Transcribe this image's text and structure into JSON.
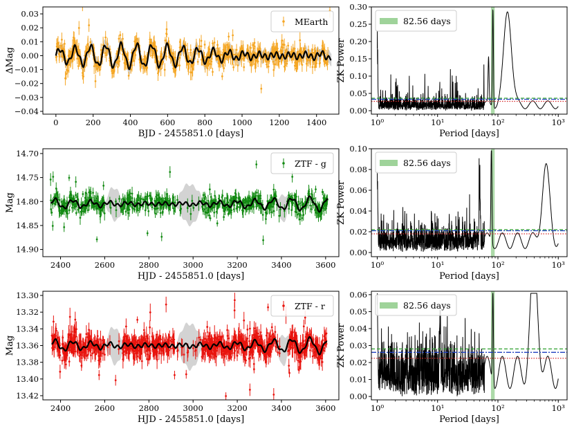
{
  "chart_data": [
    {
      "type": "scatter",
      "panel": "light-curve-mearth",
      "xlabel": "BJD - 2455851.0 [days]",
      "ylabel": "ΔMag",
      "xlim": [
        -70,
        1520
      ],
      "ylim": [
        -0.042,
        0.035
      ],
      "y_inverted": false,
      "xticks": [
        0,
        200,
        400,
        600,
        800,
        1000,
        1200,
        1400
      ],
      "yticks": [
        -0.04,
        -0.03,
        -0.02,
        -0.01,
        0.0,
        0.01,
        0.02,
        0.03
      ],
      "ytick_labels": [
        "−0.04",
        "−0.03",
        "−0.02",
        "−0.01",
        "0.00",
        "0.01",
        "0.02",
        "0.03"
      ],
      "grid": false,
      "legend": {
        "label": "MEarth",
        "position": "top-right"
      },
      "series": [
        {
          "name": "MEarth",
          "role": "data",
          "color": "#f5a623",
          "x_range": [
            0,
            1480
          ],
          "typical_y": 0.0,
          "scatter": 0.006,
          "error": 0.004
        },
        {
          "role": "model",
          "color": "#000000",
          "period": 82.56,
          "amplitude": 0.008
        },
        {
          "role": "uncertainty-band",
          "color": "#d3d3d3"
        }
      ]
    },
    {
      "type": "line",
      "panel": "periodogram-mearth",
      "xlabel": "Period [days]",
      "ylabel": "ZK Power",
      "xscale": "log",
      "xlim": [
        0.8,
        1400
      ],
      "ylim": [
        -0.01,
        0.3
      ],
      "xticks": [
        1,
        10,
        100,
        1000
      ],
      "xtick_labels": [
        "10⁰",
        "10¹",
        "10²",
        "10³"
      ],
      "yticks": [
        0.0,
        0.05,
        0.1,
        0.15,
        0.2,
        0.25,
        0.3
      ],
      "ytick_labels": [
        "0.00",
        "0.05",
        "0.10",
        "0.15",
        "0.20",
        "0.25",
        "0.30"
      ],
      "grid": false,
      "legend": {
        "label": "82.56 days",
        "position": "top-left"
      },
      "highlight_period": 82.56,
      "highlight_color": "#9fd39a",
      "peaks": [
        {
          "x": 82.56,
          "y": 0.283
        },
        {
          "x": 145,
          "y": 0.275
        },
        {
          "x": 1.0,
          "y": 0.17
        },
        {
          "x": 70,
          "y": 0.13
        }
      ],
      "fap_levels": [
        {
          "style": "dashed",
          "color": "#2ca02c",
          "y": 0.036
        },
        {
          "style": "dashdot",
          "color": "#1f3fbf",
          "y": 0.033
        },
        {
          "style": "dotted",
          "color": "#d62728",
          "y": 0.027
        }
      ]
    },
    {
      "type": "scatter",
      "panel": "light-curve-ztf-g",
      "xlabel": "HJD - 2455851.0 [days]",
      "ylabel": "Mag",
      "xlim": [
        2320,
        3660
      ],
      "ylim": [
        14.915,
        14.69
      ],
      "y_inverted": true,
      "xticks": [
        2400,
        2600,
        2800,
        3000,
        3200,
        3400,
        3600
      ],
      "yticks": [
        14.7,
        14.75,
        14.8,
        14.85,
        14.9
      ],
      "ytick_labels": [
        "14.70",
        "14.75",
        "14.80",
        "14.85",
        "14.90"
      ],
      "grid": false,
      "legend": {
        "label": "ZTF - g",
        "position": "top-right"
      },
      "series": [
        {
          "name": "ZTF - g",
          "role": "data",
          "color": "#138a13",
          "x_range": [
            2355,
            3610
          ],
          "typical_y": 14.805,
          "scatter": 0.015,
          "error": 0.01
        },
        {
          "role": "model",
          "color": "#000000",
          "period": 82.56
        },
        {
          "role": "uncertainty-band",
          "color": "#d3d3d3"
        }
      ]
    },
    {
      "type": "line",
      "panel": "periodogram-ztf-g",
      "xlabel": "Period [days]",
      "ylabel": "ZK Power",
      "xscale": "log",
      "xlim": [
        0.8,
        1400
      ],
      "ylim": [
        -0.004,
        0.1
      ],
      "xticks": [
        1,
        10,
        100,
        1000
      ],
      "xtick_labels": [
        "10⁰",
        "10¹",
        "10²",
        "10³"
      ],
      "yticks": [
        0.0,
        0.02,
        0.04,
        0.06,
        0.08,
        0.1
      ],
      "ytick_labels": [
        "0.00",
        "0.02",
        "0.04",
        "0.06",
        "0.08",
        "0.10"
      ],
      "grid": false,
      "legend": {
        "label": "82.56 days",
        "position": "top-left"
      },
      "highlight_period": 82.56,
      "highlight_color": "#9fd39a",
      "peaks": [
        {
          "x": 78,
          "y": 0.095
        },
        {
          "x": 620,
          "y": 0.069
        },
        {
          "x": 1.0,
          "y": 0.065
        },
        {
          "x": 50,
          "y": 0.06
        }
      ],
      "fap_levels": [
        {
          "style": "dashed",
          "color": "#2ca02c",
          "y": 0.022
        },
        {
          "style": "dashdot",
          "color": "#1f3fbf",
          "y": 0.021
        },
        {
          "style": "dotted",
          "color": "#d62728",
          "y": 0.018
        }
      ]
    },
    {
      "type": "scatter",
      "panel": "light-curve-ztf-r",
      "xlabel": "HJD - 2455851.0 [days]",
      "ylabel": "Mag",
      "xlim": [
        2320,
        3660
      ],
      "ylim": [
        13.425,
        13.295
      ],
      "y_inverted": true,
      "xticks": [
        2400,
        2600,
        2800,
        3000,
        3200,
        3400,
        3600
      ],
      "yticks": [
        13.3,
        13.32,
        13.34,
        13.36,
        13.38,
        13.4,
        13.42
      ],
      "ytick_labels": [
        "13.30",
        "13.32",
        "13.34",
        "13.36",
        "13.38",
        "13.40",
        "13.42"
      ],
      "grid": false,
      "legend": {
        "label": "ZTF - r",
        "position": "top-right"
      },
      "series": [
        {
          "name": "ZTF - r",
          "role": "data",
          "color": "#e8140e",
          "x_range": [
            2360,
            3605
          ],
          "typical_y": 13.36,
          "scatter": 0.01,
          "error": 0.008
        },
        {
          "role": "model",
          "color": "#000000",
          "period": 82.56
        },
        {
          "role": "uncertainty-band",
          "color": "#d3d3d3"
        }
      ]
    },
    {
      "type": "line",
      "panel": "periodogram-ztf-r",
      "xlabel": "Period [days]",
      "ylabel": "ZK Power",
      "xscale": "log",
      "xlim": [
        0.8,
        1400
      ],
      "ylim": [
        -0.002,
        0.062
      ],
      "xticks": [
        1,
        10,
        100,
        1000
      ],
      "xtick_labels": [
        "10⁰",
        "10¹",
        "10²",
        "10³"
      ],
      "yticks": [
        0.0,
        0.01,
        0.02,
        0.03,
        0.04,
        0.05,
        0.06
      ],
      "ytick_labels": [
        "0.00",
        "0.01",
        "0.02",
        "0.03",
        "0.04",
        "0.05",
        "0.06"
      ],
      "grid": false,
      "legend": {
        "label": "82.56 days",
        "position": "top-left"
      },
      "highlight_period": 82.56,
      "highlight_color": "#9fd39a",
      "peaks": [
        {
          "x": 400,
          "y": 0.06
        },
        {
          "x": 82.56,
          "y": 0.054
        },
        {
          "x": 1.0,
          "y": 0.05
        },
        {
          "x": 11,
          "y": 0.032
        }
      ],
      "fap_levels": [
        {
          "style": "dashed",
          "color": "#2ca02c",
          "y": 0.028
        },
        {
          "style": "dashdot",
          "color": "#1f3fbf",
          "y": 0.026
        },
        {
          "style": "dotted",
          "color": "#d62728",
          "y": 0.0225
        }
      ]
    }
  ]
}
